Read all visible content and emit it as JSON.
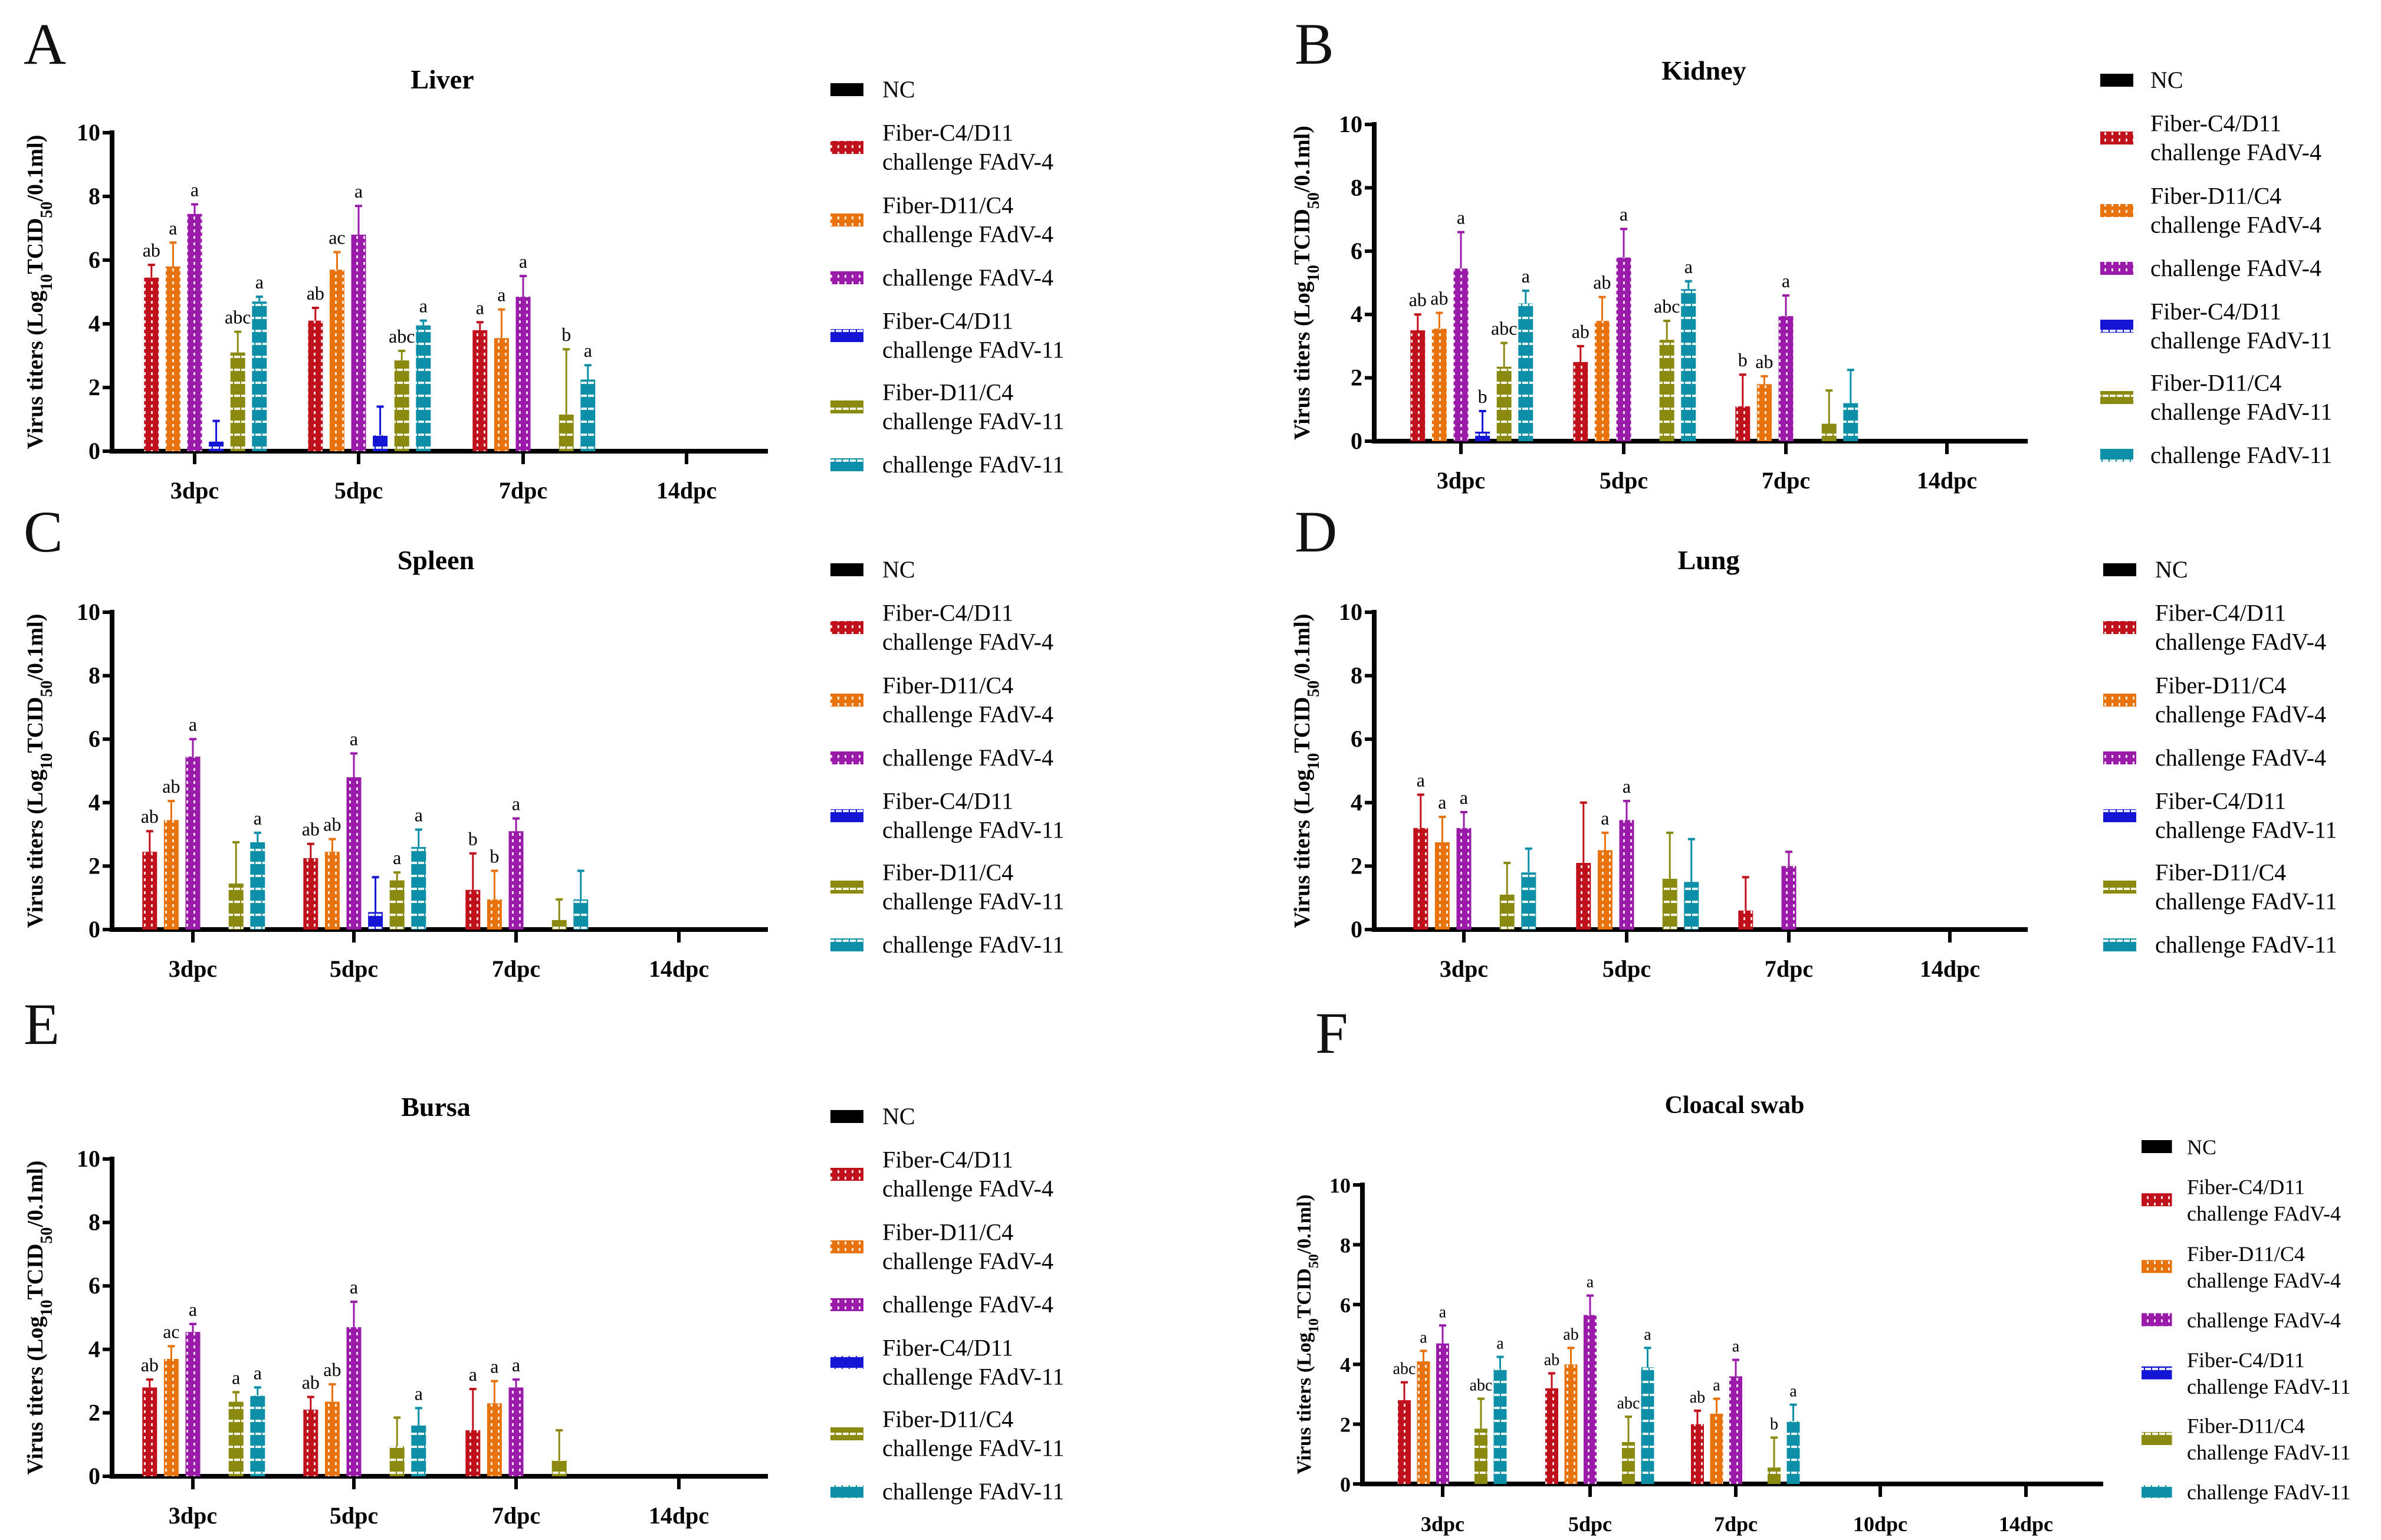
{
  "legend": [
    {
      "lines": [
        "NC"
      ],
      "color": "#000000",
      "fill": "solid"
    },
    {
      "lines": [
        "Fiber-C4/D11",
        "challenge FAdV-4"
      ],
      "color": "#c0101c",
      "fill": "dots"
    },
    {
      "lines": [
        "Fiber-D11/C4",
        "challenge FAdV-4"
      ],
      "color": "#e8720c",
      "fill": "dots"
    },
    {
      "lines": [
        "challenge FAdV-4"
      ],
      "color": "#9a1aaa",
      "fill": "dots"
    },
    {
      "lines": [
        "Fiber-C4/D11",
        "challenge FAdV-11"
      ],
      "color": "#1414d4",
      "fill": "dashes"
    },
    {
      "lines": [
        "Fiber-D11/C4",
        "challenge FAdV-11"
      ],
      "color": "#8a8a10",
      "fill": "dashes"
    },
    {
      "lines": [
        "challenge FAdV-11"
      ],
      "color": "#0e8fa8",
      "fill": "dashes"
    }
  ],
  "ylabel": {
    "pre": "Virus titers (Log",
    "sub1": "10",
    "mid": "TCID",
    "sub2": "50",
    "post": "/0.1ml)"
  },
  "chart_data": [
    {
      "panel": "A",
      "title": "Liver",
      "type": "bar",
      "ylim": [
        0,
        10
      ],
      "yticks": [
        0,
        2,
        4,
        6,
        8,
        10
      ],
      "categories": [
        "3dpc",
        "5dpc",
        "7dpc",
        "14dpc"
      ],
      "series": [
        {
          "values": [
            0,
            0,
            0,
            0
          ],
          "sd": [
            0,
            0,
            0,
            0
          ],
          "letters": [
            "",
            "",
            "",
            ""
          ]
        },
        {
          "values": [
            5.45,
            4.1,
            3.8,
            0
          ],
          "sd": [
            0.4,
            0.4,
            0.25,
            0
          ],
          "letters": [
            "ab",
            "ab",
            "a",
            ""
          ]
        },
        {
          "values": [
            5.8,
            5.7,
            3.55,
            0
          ],
          "sd": [
            0.75,
            0.55,
            0.9,
            0
          ],
          "letters": [
            "a",
            "ac",
            "a",
            ""
          ]
        },
        {
          "values": [
            7.45,
            6.8,
            4.85,
            0
          ],
          "sd": [
            0.3,
            0.9,
            0.65,
            0
          ],
          "letters": [
            "a",
            "a",
            "a",
            ""
          ]
        },
        {
          "values": [
            0.3,
            0.5,
            0,
            0
          ],
          "sd": [
            0.65,
            0.9,
            0,
            0
          ],
          "letters": [
            "",
            "",
            "",
            ""
          ]
        },
        {
          "values": [
            3.1,
            2.85,
            1.15,
            0
          ],
          "sd": [
            0.65,
            0.3,
            2.05,
            0
          ],
          "letters": [
            "abc",
            "abc",
            "b",
            ""
          ]
        },
        {
          "values": [
            4.7,
            3.95,
            2.25,
            0
          ],
          "sd": [
            0.15,
            0.15,
            0.45,
            0
          ],
          "letters": [
            "a",
            "a",
            "a",
            ""
          ]
        }
      ]
    },
    {
      "panel": "B",
      "title": "Kidney",
      "type": "bar",
      "ylim": [
        0,
        10
      ],
      "yticks": [
        0,
        2,
        4,
        6,
        8,
        10
      ],
      "categories": [
        "3dpc",
        "5dpc",
        "7dpc",
        "14dpc"
      ],
      "series": [
        {
          "values": [
            0,
            0,
            0,
            0
          ],
          "sd": [
            0,
            0,
            0,
            0
          ],
          "letters": [
            "",
            "",
            "",
            ""
          ]
        },
        {
          "values": [
            3.5,
            2.5,
            1.1,
            0
          ],
          "sd": [
            0.5,
            0.5,
            1.0,
            0
          ],
          "letters": [
            "ab",
            "ab",
            "b",
            ""
          ]
        },
        {
          "values": [
            3.55,
            3.8,
            1.8,
            0
          ],
          "sd": [
            0.5,
            0.75,
            0.25,
            0
          ],
          "letters": [
            "ab",
            "ab",
            "ab",
            ""
          ]
        },
        {
          "values": [
            5.45,
            5.8,
            3.95,
            0
          ],
          "sd": [
            1.15,
            0.9,
            0.65,
            0
          ],
          "letters": [
            "a",
            "a",
            "a",
            ""
          ]
        },
        {
          "values": [
            0.3,
            0,
            0,
            0
          ],
          "sd": [
            0.65,
            0,
            0,
            0
          ],
          "letters": [
            "b",
            "",
            "",
            ""
          ]
        },
        {
          "values": [
            2.35,
            3.2,
            0.55,
            0
          ],
          "sd": [
            0.75,
            0.6,
            1.05,
            0
          ],
          "letters": [
            "abc",
            "abc",
            "",
            ""
          ]
        },
        {
          "values": [
            4.35,
            4.8,
            1.2,
            0
          ],
          "sd": [
            0.4,
            0.25,
            1.05,
            0
          ],
          "letters": [
            "a",
            "a",
            "",
            ""
          ]
        }
      ]
    },
    {
      "panel": "C",
      "title": "Spleen",
      "type": "bar",
      "ylim": [
        0,
        10
      ],
      "yticks": [
        0,
        2,
        4,
        6,
        8,
        10
      ],
      "categories": [
        "3dpc",
        "5dpc",
        "7dpc",
        "14dpc"
      ],
      "series": [
        {
          "values": [
            0,
            0,
            0,
            0
          ],
          "sd": [
            0,
            0,
            0,
            0
          ],
          "letters": [
            "",
            "",
            "",
            ""
          ]
        },
        {
          "values": [
            2.45,
            2.25,
            1.25,
            0
          ],
          "sd": [
            0.65,
            0.45,
            1.15,
            0
          ],
          "letters": [
            "ab",
            "ab",
            "b",
            ""
          ]
        },
        {
          "values": [
            3.45,
            2.45,
            0.95,
            0
          ],
          "sd": [
            0.6,
            0.4,
            0.9,
            0
          ],
          "letters": [
            "ab",
            "ab",
            "b",
            ""
          ]
        },
        {
          "values": [
            5.45,
            4.8,
            3.1,
            0
          ],
          "sd": [
            0.55,
            0.75,
            0.4,
            0
          ],
          "letters": [
            "a",
            "a",
            "a",
            ""
          ]
        },
        {
          "values": [
            0,
            0.55,
            0,
            0
          ],
          "sd": [
            0,
            1.1,
            0,
            0
          ],
          "letters": [
            "",
            "",
            "",
            ""
          ]
        },
        {
          "values": [
            1.45,
            1.55,
            0.3,
            0
          ],
          "sd": [
            1.3,
            0.25,
            0.65,
            0
          ],
          "letters": [
            "",
            "a",
            "",
            ""
          ]
        },
        {
          "values": [
            2.75,
            2.6,
            0.95,
            0
          ],
          "sd": [
            0.3,
            0.55,
            0.9,
            0
          ],
          "letters": [
            "a",
            "a",
            "",
            ""
          ]
        }
      ]
    },
    {
      "panel": "D",
      "title": "Lung",
      "type": "bar",
      "ylim": [
        0,
        10
      ],
      "yticks": [
        0,
        2,
        4,
        6,
        8,
        10
      ],
      "categories": [
        "3dpc",
        "5dpc",
        "7dpc",
        "14dpc"
      ],
      "series": [
        {
          "values": [
            0,
            0,
            0,
            0
          ],
          "sd": [
            0,
            0,
            0,
            0
          ],
          "letters": [
            "",
            "",
            "",
            ""
          ]
        },
        {
          "values": [
            3.2,
            2.1,
            0.6,
            0
          ],
          "sd": [
            1.05,
            1.9,
            1.05,
            0
          ],
          "letters": [
            "a",
            "",
            "",
            ""
          ]
        },
        {
          "values": [
            2.75,
            2.5,
            0,
            0
          ],
          "sd": [
            0.8,
            0.55,
            0,
            0
          ],
          "letters": [
            "a",
            "a",
            "",
            ""
          ]
        },
        {
          "values": [
            3.2,
            3.45,
            2.0,
            0
          ],
          "sd": [
            0.5,
            0.6,
            0.45,
            0
          ],
          "letters": [
            "a",
            "a",
            "",
            ""
          ]
        },
        {
          "values": [
            0,
            0,
            0,
            0
          ],
          "sd": [
            0,
            0,
            0,
            0
          ],
          "letters": [
            "",
            "",
            "",
            ""
          ]
        },
        {
          "values": [
            1.1,
            1.6,
            0,
            0
          ],
          "sd": [
            1.0,
            1.45,
            0,
            0
          ],
          "letters": [
            "",
            "",
            "",
            ""
          ]
        },
        {
          "values": [
            1.8,
            1.5,
            0,
            0
          ],
          "sd": [
            0.75,
            1.35,
            0,
            0
          ],
          "letters": [
            "",
            "",
            "",
            ""
          ]
        }
      ]
    },
    {
      "panel": "E",
      "title": "Bursa",
      "type": "bar",
      "ylim": [
        0,
        10
      ],
      "yticks": [
        0,
        2,
        4,
        6,
        8,
        10
      ],
      "categories": [
        "3dpc",
        "5dpc",
        "7dpc",
        "14dpc"
      ],
      "series": [
        {
          "values": [
            0,
            0,
            0,
            0
          ],
          "sd": [
            0,
            0,
            0,
            0
          ],
          "letters": [
            "",
            "",
            "",
            ""
          ]
        },
        {
          "values": [
            2.8,
            2.1,
            1.45,
            0
          ],
          "sd": [
            0.25,
            0.4,
            1.3,
            0
          ],
          "letters": [
            "ab",
            "ab",
            "a",
            ""
          ]
        },
        {
          "values": [
            3.7,
            2.35,
            2.3,
            0
          ],
          "sd": [
            0.4,
            0.55,
            0.7,
            0
          ],
          "letters": [
            "ac",
            "ab",
            "a",
            ""
          ]
        },
        {
          "values": [
            4.55,
            4.7,
            2.8,
            0
          ],
          "sd": [
            0.25,
            0.8,
            0.25,
            0
          ],
          "letters": [
            "a",
            "a",
            "a",
            ""
          ]
        },
        {
          "values": [
            0,
            0,
            0,
            0
          ],
          "sd": [
            0,
            0,
            0,
            0
          ],
          "letters": [
            "",
            "",
            "",
            ""
          ]
        },
        {
          "values": [
            2.35,
            0.95,
            0.5,
            0
          ],
          "sd": [
            0.3,
            0.9,
            0.95,
            0
          ],
          "letters": [
            "a",
            "",
            "",
            ""
          ]
        },
        {
          "values": [
            2.55,
            1.6,
            0,
            0
          ],
          "sd": [
            0.25,
            0.55,
            0,
            0
          ],
          "letters": [
            "a",
            "a",
            "",
            ""
          ]
        }
      ]
    },
    {
      "panel": "F",
      "title": "Cloacal swab",
      "type": "bar",
      "ylim": [
        0,
        10
      ],
      "yticks": [
        0,
        2,
        4,
        6,
        8,
        10
      ],
      "categories": [
        "3dpc",
        "5dpc",
        "7dpc",
        "10dpc",
        "14dpc"
      ],
      "series": [
        {
          "values": [
            0,
            0,
            0,
            0,
            0
          ],
          "sd": [
            0,
            0,
            0,
            0,
            0
          ],
          "letters": [
            "",
            "",
            "",
            "",
            ""
          ]
        },
        {
          "values": [
            2.8,
            3.2,
            2.0,
            0,
            0
          ],
          "sd": [
            0.6,
            0.5,
            0.45,
            0,
            0
          ],
          "letters": [
            "abc",
            "ab",
            "ab",
            "",
            ""
          ]
        },
        {
          "values": [
            4.1,
            4.0,
            2.35,
            0,
            0
          ],
          "sd": [
            0.35,
            0.55,
            0.5,
            0,
            0
          ],
          "letters": [
            "a",
            "ab",
            "a",
            "",
            ""
          ]
        },
        {
          "values": [
            4.7,
            5.65,
            3.6,
            0,
            0
          ],
          "sd": [
            0.6,
            0.65,
            0.55,
            0,
            0
          ],
          "letters": [
            "a",
            "a",
            "a",
            "",
            ""
          ]
        },
        {
          "values": [
            0,
            0,
            0,
            0,
            0
          ],
          "sd": [
            0,
            0,
            0,
            0,
            0
          ],
          "letters": [
            "",
            "",
            "",
            "",
            ""
          ]
        },
        {
          "values": [
            1.85,
            1.4,
            0.55,
            0,
            0
          ],
          "sd": [
            1.0,
            0.85,
            1.0,
            0,
            0
          ],
          "letters": [
            "abc",
            "abc",
            "b",
            "",
            ""
          ]
        },
        {
          "values": [
            3.85,
            3.9,
            2.1,
            0,
            0
          ],
          "sd": [
            0.4,
            0.65,
            0.55,
            0,
            0
          ],
          "letters": [
            "a",
            "a",
            "a",
            "",
            ""
          ]
        }
      ]
    }
  ]
}
